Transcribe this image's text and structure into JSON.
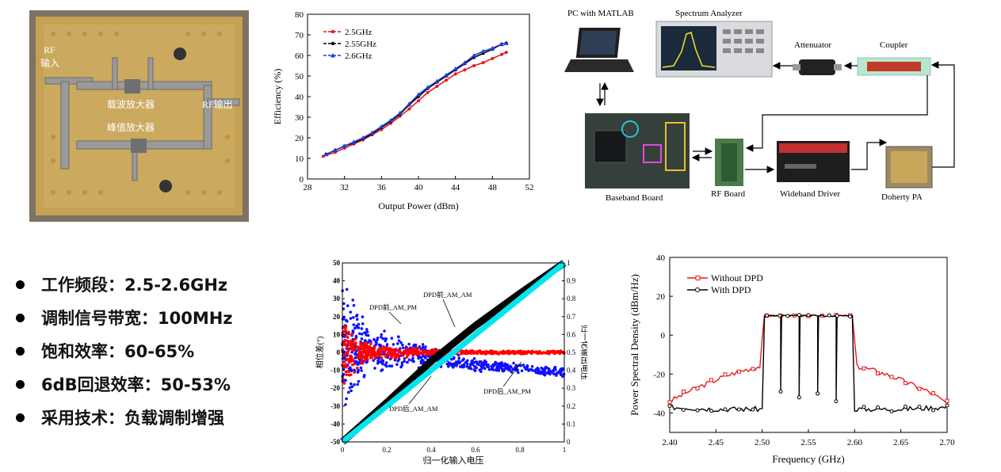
{
  "pcb_photo": {
    "labels": {
      "rf_in": "RF\n输入",
      "carrier": "载波放大器",
      "peak": "峰值放大器",
      "rf_out": "RF输出"
    }
  },
  "setup": {
    "labels": {
      "pc": "PC with MATLAB",
      "spectrum": "Spectrum Analyzer",
      "attenuator": "Attenuator",
      "coupler": "Coupler",
      "baseband": "Baseband Board",
      "rf_board": "RF Board",
      "driver": "Wideband Driver",
      "doherty": "Doherty PA"
    }
  },
  "specs": [
    "工作频段：2.5-2.6GHz",
    "调制信号带宽：100MHz",
    "饱和效率：60-65%",
    "6dB回退效率：50-53%",
    "采用技术：负载调制增强"
  ],
  "chart_data": [
    {
      "type": "line",
      "xlabel": "Output Power (dBm)",
      "ylabel": "Efficiency (%)",
      "xlim": [
        28,
        52
      ],
      "ylim": [
        0,
        80
      ],
      "xticks": [
        28,
        32,
        36,
        40,
        44,
        48,
        52
      ],
      "yticks": [
        0,
        10,
        20,
        30,
        40,
        50,
        60,
        70,
        80
      ],
      "legend_position": "top-left",
      "series": [
        {
          "name": "2.5GHz",
          "color": "#e41a1c",
          "marker": "dot",
          "x": [
            29.7,
            31,
            32,
            33,
            34,
            35,
            36,
            37,
            38,
            39,
            40,
            41,
            42,
            43,
            44,
            45,
            46,
            47,
            48,
            49,
            49.5
          ],
          "y": [
            11,
            13,
            15,
            17,
            19,
            21.5,
            24,
            27,
            30.5,
            34,
            38,
            42,
            45,
            48,
            51,
            53,
            55,
            56.5,
            58.5,
            60.5,
            61.5
          ]
        },
        {
          "name": "2.55GHz",
          "color": "#000000",
          "marker": "dot",
          "x": [
            30,
            31,
            32,
            33,
            34,
            35,
            36,
            37,
            38,
            39,
            40,
            41,
            42,
            43,
            44,
            45,
            46,
            47,
            48,
            49,
            49.5
          ],
          "y": [
            12,
            14,
            16,
            17.5,
            19.5,
            22,
            25,
            28,
            31.5,
            36,
            40,
            44,
            47,
            50,
            53,
            56,
            59,
            61,
            63,
            65.5,
            66
          ]
        },
        {
          "name": "2.6GHz",
          "color": "#1f3fd6",
          "marker": "triangle",
          "x": [
            30,
            31,
            32,
            33,
            34,
            35,
            36,
            37,
            38,
            39,
            40,
            41,
            42,
            43,
            44,
            45,
            46,
            47,
            48,
            49,
            49.5
          ],
          "y": [
            12,
            14,
            16,
            18,
            20,
            22.5,
            25.5,
            28.5,
            32,
            36.5,
            41,
            44.5,
            47.5,
            50.5,
            53.5,
            56.5,
            60,
            62,
            63.5,
            65.5,
            66
          ]
        }
      ]
    },
    {
      "type": "scatter",
      "xlabel": "归一化输入电压",
      "ylabel_left": "相位差(°)",
      "ylabel_right": "归一化输出电压",
      "xlim": [
        0,
        1
      ],
      "ylim_left": [
        -50,
        50
      ],
      "ylim_right": [
        0,
        1
      ],
      "xticks": [
        0,
        0.2,
        0.4,
        0.6,
        0.8,
        1
      ],
      "yticks_left": [
        -50,
        -40,
        -30,
        -20,
        -10,
        0,
        10,
        20,
        30,
        40,
        50
      ],
      "yticks_right": [
        0,
        0.1,
        0.2,
        0.3,
        0.4,
        0.5,
        0.6,
        0.7,
        0.8,
        0.9,
        1
      ],
      "annotations": [
        "DPD前_AM_PM",
        "DPD前_AM_AM",
        "DPD后_AM_PM",
        "DPD后_AM_AM"
      ],
      "series": [
        {
          "name": "DPD前 AM_PM",
          "color": "#1010ff",
          "axis": "left",
          "x": [
            0,
            0.1,
            0.2,
            0.3,
            0.4,
            0.5,
            0.6,
            0.7,
            0.8,
            0.9,
            1
          ],
          "y": [
            5,
            3,
            1,
            -1,
            -3,
            -5,
            -7,
            -8,
            -9,
            -10,
            -11
          ],
          "spread": [
            40,
            18,
            12,
            9,
            7,
            5,
            4,
            3.5,
            3,
            3,
            3
          ]
        },
        {
          "name": "DPD后 AM_PM",
          "color": "#ff0000",
          "axis": "left",
          "x": [
            0,
            0.1,
            0.2,
            0.3,
            0.4,
            0.5,
            0.6,
            0.7,
            0.8,
            0.9,
            1
          ],
          "y": [
            0,
            0,
            0,
            0,
            0,
            0,
            0,
            0,
            0,
            0,
            0
          ],
          "spread": [
            20,
            6,
            4,
            3,
            2,
            1.5,
            1.2,
            1,
            1,
            1,
            1
          ]
        },
        {
          "name": "DPD前 AM_AM",
          "color": "#000000",
          "axis": "right",
          "x": [
            0,
            0.2,
            0.4,
            0.6,
            0.8,
            1
          ],
          "y": [
            0,
            0.22,
            0.45,
            0.65,
            0.83,
            1
          ]
        },
        {
          "name": "DPD后 AM_AM",
          "color": "#00e5ee",
          "axis": "right",
          "x": [
            0,
            0.2,
            0.4,
            0.6,
            0.8,
            1
          ],
          "y": [
            0,
            0.2,
            0.4,
            0.6,
            0.8,
            1
          ]
        }
      ]
    },
    {
      "type": "line",
      "xlabel": "Frequency (GHz)",
      "ylabel": "Power Spectral Density (dBm/Hz)",
      "xlim": [
        2.4,
        2.7
      ],
      "ylim": [
        -50,
        40
      ],
      "xticks": [
        2.4,
        2.45,
        2.5,
        2.55,
        2.6,
        2.65,
        2.7
      ],
      "yticks": [
        -40,
        -20,
        0,
        20,
        40
      ],
      "legend_position": "top-left",
      "series": [
        {
          "name": "Without DPD",
          "color": "#e41a1c",
          "marker": "open-square",
          "x": [
            2.4,
            2.42,
            2.44,
            2.46,
            2.48,
            2.498,
            2.502,
            2.51,
            2.52,
            2.53,
            2.54,
            2.55,
            2.56,
            2.57,
            2.58,
            2.59,
            2.598,
            2.602,
            2.62,
            2.64,
            2.66,
            2.68,
            2.7
          ],
          "y": [
            -34,
            -29,
            -25,
            -21,
            -18,
            -16,
            10,
            10,
            10,
            10,
            10,
            10,
            10,
            10,
            10,
            10,
            10,
            -16,
            -18,
            -21,
            -25,
            -29,
            -35
          ]
        },
        {
          "name": "With DPD",
          "color": "#000000",
          "marker": "open-circle",
          "x": [
            2.4,
            2.45,
            2.49,
            2.5,
            2.502,
            2.51,
            2.52,
            2.53,
            2.54,
            2.55,
            2.56,
            2.57,
            2.58,
            2.59,
            2.598,
            2.6,
            2.62,
            2.65,
            2.7
          ],
          "y": [
            -37,
            -38,
            -38,
            -38,
            10,
            10,
            10,
            10,
            10,
            10,
            10,
            10,
            10,
            10,
            10,
            -38,
            -38,
            -38,
            -37
          ],
          "notches": [
            {
              "x": 2.52,
              "y": -29
            },
            {
              "x": 2.54,
              "y": -32
            },
            {
              "x": 2.56,
              "y": -30
            },
            {
              "x": 2.58,
              "y": -34
            }
          ]
        }
      ]
    }
  ]
}
